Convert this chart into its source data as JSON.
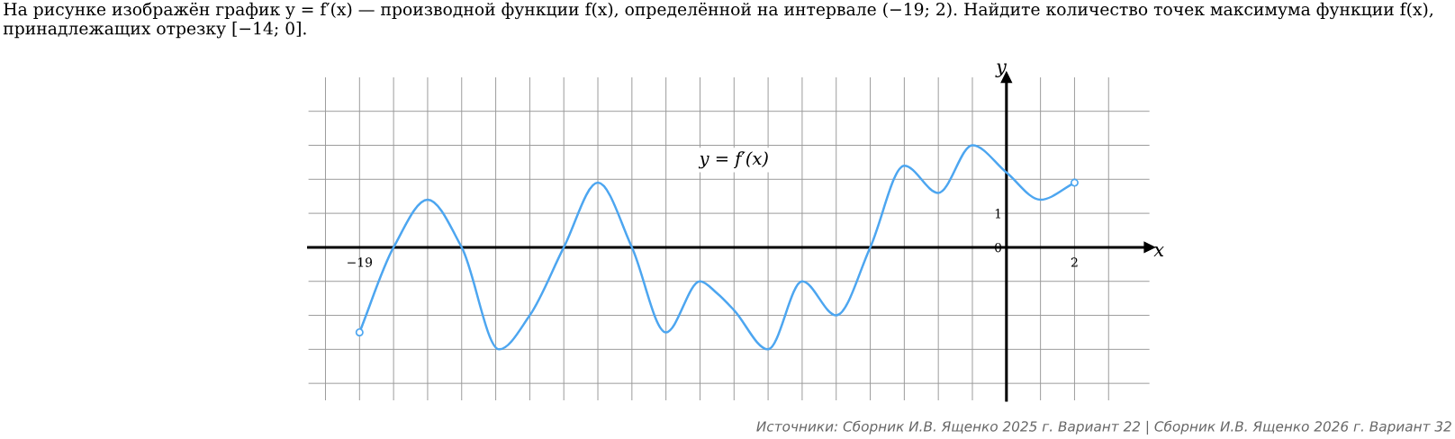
{
  "chart_data": {
    "type": "line",
    "title": "На рисунке изображён график y = f′(x) — производной функции f(x), определённой на интервале (−19; 2). Найдите количество точек максимума функции f(x), принадлежащих отрезку [−14; 0].",
    "xlabel": "x",
    "ylabel": "y",
    "annotations": [
      "Источники: Сборник И.В. Ященко 2025 г. Вариант 22 | Сборник И.В. Ященко 2026 г. Вариант 32"
    ],
    "series": [
      {
        "name": "y = f′(x)",
        "color": "#4da6f0",
        "x": [
          -19,
          -18,
          -17,
          -16,
          -14.9,
          -14,
          -13,
          -12,
          -11,
          -10,
          -9,
          -8.5,
          -8,
          -7,
          -6,
          -5,
          -4,
          -3,
          -2,
          -1,
          0,
          1,
          2
        ],
        "values": [
          -2.5,
          0,
          1.4,
          0,
          -3,
          -2,
          0,
          1.9,
          0,
          -2.5,
          -1,
          -1.35,
          -1.85,
          -3,
          -1,
          -2,
          0,
          2.4,
          1.6,
          3,
          2.2,
          1.4,
          1.9
        ]
      },
      {
        "type": "scatter",
        "marker": "circle",
        "color": "#4da6f0",
        "x": [
          -19,
          2
        ],
        "values": [
          -2.5,
          1.9
        ]
      }
    ],
    "xlim": [
      -20.5,
      4.2
    ],
    "ylim": [
      -4.5,
      5
    ],
    "xticks": [
      {
        "value": -20,
        "label": null
      },
      -19,
      {
        "value": -18,
        "label": null
      },
      {
        "value": -17,
        "label": null
      },
      {
        "value": -16,
        "label": null
      },
      {
        "value": -15,
        "label": null
      },
      {
        "value": -14,
        "label": null
      },
      {
        "value": -13,
        "label": null
      },
      {
        "value": -12,
        "label": null
      },
      {
        "value": -11,
        "label": null
      },
      {
        "value": -10,
        "label": null
      },
      {
        "value": -9,
        "label": null
      },
      {
        "value": -8,
        "label": null
      },
      {
        "value": -7,
        "label": null
      },
      {
        "value": -6,
        "label": null
      },
      {
        "value": -5,
        "label": null
      },
      {
        "value": -4,
        "label": null
      },
      {
        "value": -3,
        "label": null
      },
      {
        "value": -2,
        "label": null
      },
      {
        "value": -1,
        "label": null
      },
      {
        "value": 0,
        "label": null
      },
      {
        "value": 1,
        "label": null
      },
      2,
      {
        "value": 3,
        "label": null
      }
    ],
    "yticks": [
      {
        "value": -4,
        "label": null
      },
      {
        "value": -3,
        "label": null
      },
      {
        "value": -2,
        "label": null
      },
      {
        "value": -1,
        "label": null
      },
      0,
      1,
      {
        "value": 2,
        "label": null
      },
      {
        "value": 3,
        "label": null
      },
      {
        "value": 4,
        "label": null
      }
    ],
    "grid": true
  }
}
